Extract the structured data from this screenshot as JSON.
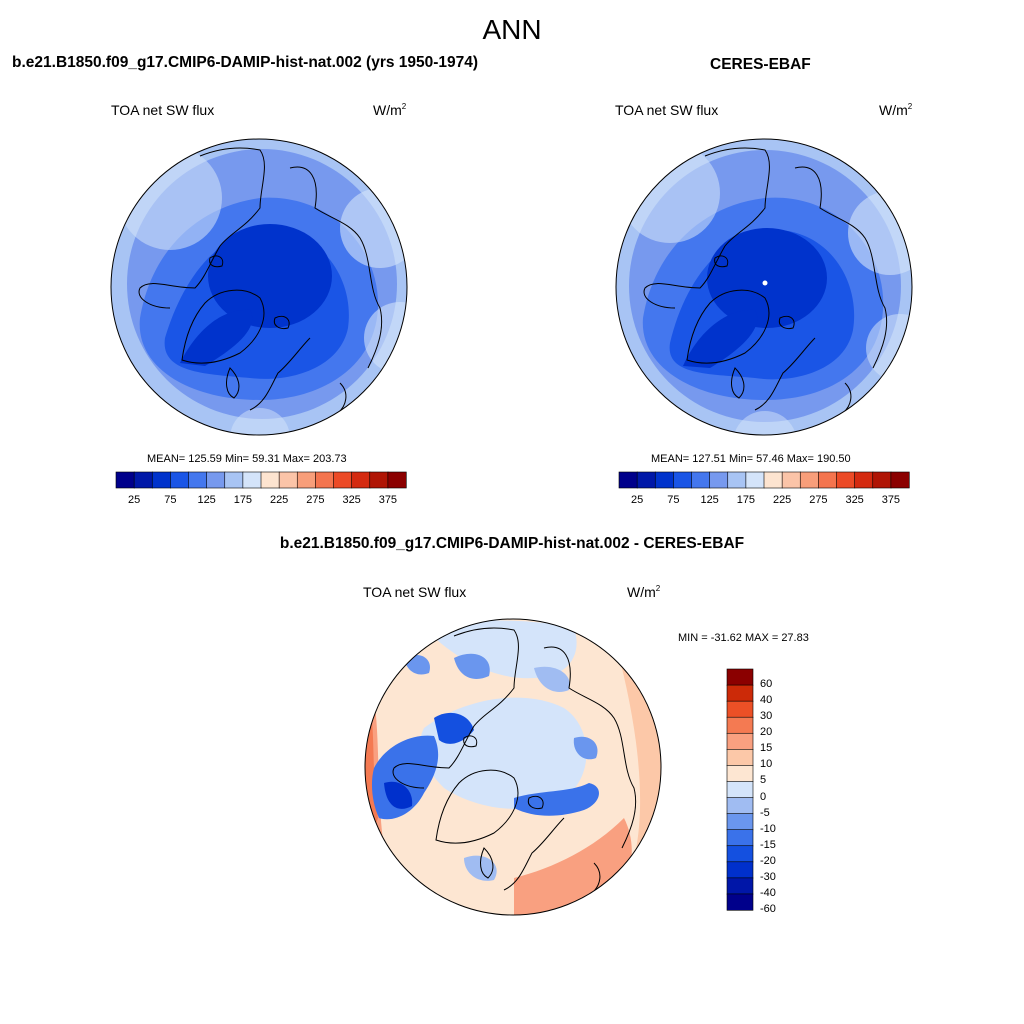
{
  "title": "ANN",
  "panels": [
    {
      "id": "model",
      "title": "b.e21.B1850.f09_g17.CMIP6-DAMIP-hist-nat.002 (yrs 1950-1974)",
      "variable": "TOA net SW flux",
      "units_base": "W/m",
      "units_exp": "2",
      "stats_text": "MEAN= 125.59  Min=  59.31  Max= 203.73",
      "colorbar_ticks": [
        "25",
        "75",
        "125",
        "175",
        "225",
        "275",
        "325",
        "375"
      ]
    },
    {
      "id": "obs",
      "title": "CERES-EBAF",
      "variable": "TOA net SW flux",
      "units_base": "W/m",
      "units_exp": "2",
      "stats_text": "MEAN= 127.51  Min=  57.46  Max= 190.50",
      "colorbar_ticks": [
        "25",
        "75",
        "125",
        "175",
        "225",
        "275",
        "325",
        "375"
      ]
    },
    {
      "id": "diff",
      "title": "b.e21.B1850.f09_g17.CMIP6-DAMIP-hist-nat.002 - CERES-EBAF",
      "variable": "TOA net SW flux",
      "units_base": "W/m",
      "units_exp": "2",
      "stats_text": "MIN = -31.62 MAX =  27.83",
      "colorbar_ticks": [
        "60",
        "40",
        "30",
        "20",
        "15",
        "10",
        "5",
        "0",
        "-5",
        "-10",
        "-15",
        "-20",
        "-30",
        "-40",
        "-60"
      ]
    }
  ],
  "colors": {
    "abs_scale": [
      "#00008b",
      "#0018a8",
      "#0033cc",
      "#1a55e6",
      "#4477ee",
      "#7799ee",
      "#a8c4f4",
      "#d4e4fa",
      "#fde4d0",
      "#fbc4a8",
      "#f89e7a",
      "#f4744e",
      "#ec4a26",
      "#d42a10",
      "#b01505",
      "#8b0000"
    ],
    "diff_scale": [
      "#00008b",
      "#0016a8",
      "#0030cc",
      "#1450e0",
      "#3a72ea",
      "#6a96ee",
      "#a0bcf2",
      "#d4e4fa",
      "#fde6d2",
      "#fcc8a8",
      "#f9a080",
      "#f47a52",
      "#ec5026",
      "#cc2a08",
      "#8b0000"
    ]
  }
}
